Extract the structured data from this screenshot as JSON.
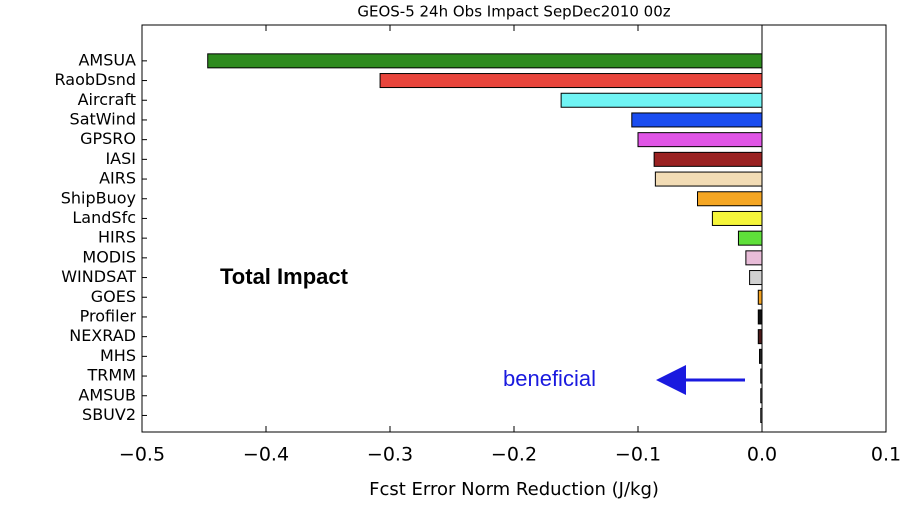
{
  "chart_data": {
    "type": "barh",
    "title": "GEOS-5 24h Obs Impact SepDec2010 00z",
    "xlabel": "Fcst Error Norm Reduction (J/kg)",
    "annotations": [
      "Total Impact",
      "beneficial"
    ],
    "categories": [
      "AMSUA",
      "RaobDsnd",
      "Aircraft",
      "SatWind",
      "GPSRO",
      "IASI",
      "AIRS",
      "ShipBuoy",
      "LandSfc",
      "HIRS",
      "MODIS",
      "WINDSAT",
      "GOES",
      "Profiler",
      "NEXRAD",
      "MHS",
      "TRMM",
      "AMSUB",
      "SBUV2"
    ],
    "values": [
      -0.447,
      -0.308,
      -0.162,
      -0.105,
      -0.1,
      -0.087,
      -0.086,
      -0.052,
      -0.04,
      -0.019,
      -0.013,
      -0.01,
      -0.003,
      -0.003,
      -0.003,
      -0.002,
      -0.001,
      -0.001,
      -0.001
    ],
    "colors": [
      "#2e8b1e",
      "#e8453c",
      "#70f4f4",
      "#1a4df0",
      "#e055e6",
      "#9a2222",
      "#f2dcb5",
      "#f5a623",
      "#f5f53a",
      "#5fe03a",
      "#e8bcd8",
      "#d0d0d0",
      "#f0a020",
      "#111111",
      "#4a1a1a",
      "#222222",
      "#888888",
      "#999999",
      "#aaaaaa"
    ],
    "xlim": [
      -0.5,
      0.1
    ],
    "xticks": [
      {
        "value": -0.5,
        "label": "−0.5"
      },
      {
        "value": -0.4,
        "label": "−0.4"
      },
      {
        "value": -0.3,
        "label": "−0.3"
      },
      {
        "value": -0.2,
        "label": "−0.2"
      },
      {
        "value": -0.1,
        "label": "−0.1"
      },
      {
        "value": 0,
        "label": "0.0"
      },
      0.1
    ]
  }
}
